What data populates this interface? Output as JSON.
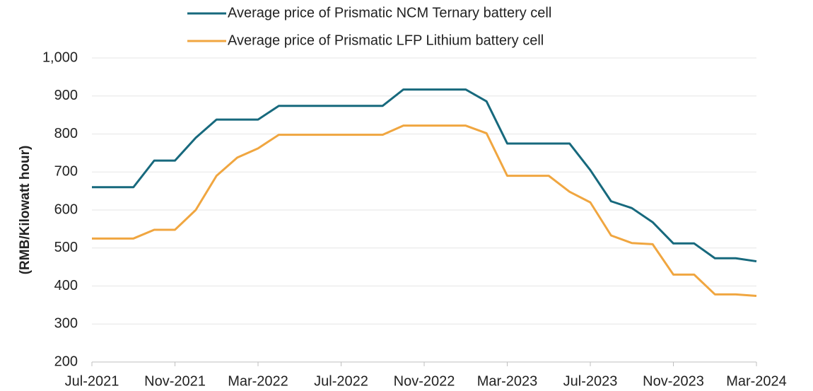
{
  "chart_data": {
    "type": "line",
    "y_label": "(RMB/Kilowatt  hour)",
    "categories": [
      "Jul-2021",
      null,
      null,
      null,
      "Nov-2021",
      null,
      null,
      null,
      "Mar-2022",
      null,
      null,
      null,
      "Jul-2022",
      null,
      null,
      null,
      "Nov-2022",
      null,
      null,
      null,
      "Mar-2023",
      null,
      null,
      null,
      "Jul-2023",
      null,
      null,
      null,
      "Nov-2023",
      null,
      null,
      null,
      "Mar-2024"
    ],
    "series": [
      {
        "name": "Average price of Prismatic NCM Ternary battery cell",
        "color": "#17697d",
        "values": [
          660,
          660,
          660,
          730,
          730,
          790,
          838,
          838,
          838,
          874,
          874,
          874,
          874,
          874,
          874,
          917,
          917,
          917,
          917,
          886,
          775,
          775,
          775,
          775,
          705,
          623,
          605,
          568,
          512,
          512,
          473,
          473,
          465
        ]
      },
      {
        "name": "Average price of Prismatic LFP Lithium battery cell",
        "color": "#f0a640",
        "values": [
          525,
          525,
          525,
          548,
          548,
          600,
          690,
          738,
          762,
          798,
          798,
          798,
          798,
          798,
          798,
          822,
          822,
          822,
          822,
          802,
          690,
          690,
          690,
          648,
          620,
          533,
          513,
          510,
          430,
          430,
          378,
          378,
          374
        ]
      }
    ],
    "ylim": [
      200,
      1000
    ],
    "yticks": [
      200,
      300,
      400,
      500,
      600,
      700,
      800,
      900,
      {
        "value": 1000,
        "label": "1,000"
      }
    ],
    "grid": true,
    "legend": "top"
  }
}
